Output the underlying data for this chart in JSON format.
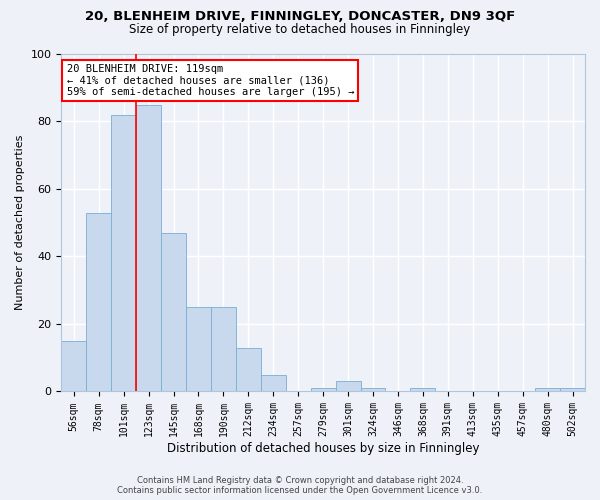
{
  "title": "20, BLENHEIM DRIVE, FINNINGLEY, DONCASTER, DN9 3QF",
  "subtitle": "Size of property relative to detached houses in Finningley",
  "xlabel": "Distribution of detached houses by size in Finningley",
  "ylabel": "Number of detached properties",
  "bar_color": "#c8d9ee",
  "bar_edge_color": "#7aaed4",
  "categories": [
    "56sqm",
    "78sqm",
    "101sqm",
    "123sqm",
    "145sqm",
    "168sqm",
    "190sqm",
    "212sqm",
    "234sqm",
    "257sqm",
    "279sqm",
    "301sqm",
    "324sqm",
    "346sqm",
    "368sqm",
    "391sqm",
    "413sqm",
    "435sqm",
    "457sqm",
    "480sqm",
    "502sqm"
  ],
  "values": [
    15,
    53,
    82,
    85,
    47,
    25,
    25,
    13,
    5,
    0,
    1,
    3,
    1,
    0,
    1,
    0,
    0,
    0,
    0,
    1,
    1
  ],
  "ylim": [
    0,
    100
  ],
  "yticks": [
    0,
    20,
    40,
    60,
    80,
    100
  ],
  "property_line_x": 2.5,
  "annotation_text": "20 BLENHEIM DRIVE: 119sqm\n← 41% of detached houses are smaller (136)\n59% of semi-detached houses are larger (195) →",
  "annotation_box_color": "white",
  "annotation_box_edge": "red",
  "vline_color": "red",
  "footer_line1": "Contains HM Land Registry data © Crown copyright and database right 2024.",
  "footer_line2": "Contains public sector information licensed under the Open Government Licence v3.0.",
  "background_color": "#eef2f8",
  "grid_color": "white"
}
